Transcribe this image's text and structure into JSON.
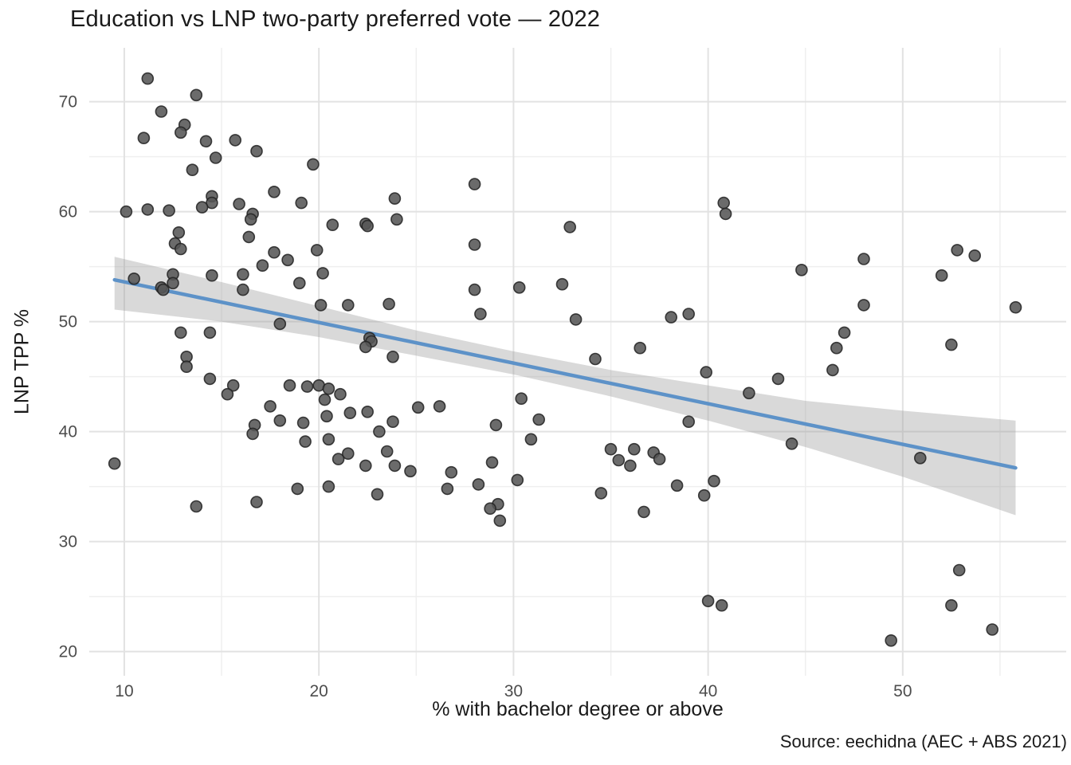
{
  "title": "Education vs LNP two-party preferred vote — 2022",
  "source": "Source: eechidna (AEC + ABS 2021)",
  "chart_data": {
    "type": "scatter",
    "title": "Education vs LNP two-party preferred vote — 2022",
    "xlabel": "% with bachelor degree or above",
    "ylabel": "LNP TPP %",
    "caption": "Source: eechidna (AEC + ABS 2021)",
    "xlim": [
      8.2,
      58.4
    ],
    "ylim": [
      17.8,
      74.9
    ],
    "x_major_ticks": [
      10,
      20,
      30,
      40,
      50
    ],
    "x_minor_ticks": [
      15,
      25,
      35,
      45,
      55
    ],
    "y_major_ticks": [
      20,
      30,
      40,
      50,
      60,
      70
    ],
    "y_minor_ticks": [
      25,
      35,
      45,
      55,
      65
    ],
    "grid": true,
    "legend": "none",
    "points": [
      [
        11.2,
        72.1
      ],
      [
        13.7,
        70.6
      ],
      [
        11.9,
        69.1
      ],
      [
        13.1,
        67.9
      ],
      [
        12.9,
        67.2
      ],
      [
        11.0,
        66.7
      ],
      [
        14.2,
        66.4
      ],
      [
        15.7,
        66.5
      ],
      [
        16.8,
        65.5
      ],
      [
        14.7,
        64.9
      ],
      [
        19.7,
        64.3
      ],
      [
        13.5,
        63.8
      ],
      [
        28.0,
        62.5
      ],
      [
        17.7,
        61.8
      ],
      [
        14.5,
        61.4
      ],
      [
        23.9,
        61.2
      ],
      [
        40.8,
        60.8
      ],
      [
        14.5,
        60.8
      ],
      [
        15.9,
        60.7
      ],
      [
        19.1,
        60.8
      ],
      [
        14.0,
        60.4
      ],
      [
        11.2,
        60.2
      ],
      [
        12.3,
        60.1
      ],
      [
        10.1,
        60.0
      ],
      [
        40.9,
        59.8
      ],
      [
        16.6,
        59.8
      ],
      [
        16.5,
        59.3
      ],
      [
        24.0,
        59.3
      ],
      [
        22.4,
        58.9
      ],
      [
        20.7,
        58.8
      ],
      [
        22.5,
        58.7
      ],
      [
        32.9,
        58.6
      ],
      [
        12.8,
        58.1
      ],
      [
        16.4,
        57.7
      ],
      [
        12.6,
        57.1
      ],
      [
        28.0,
        57.0
      ],
      [
        12.9,
        56.6
      ],
      [
        52.8,
        56.5
      ],
      [
        19.9,
        56.5
      ],
      [
        17.7,
        56.3
      ],
      [
        53.7,
        56.0
      ],
      [
        48.0,
        55.7
      ],
      [
        18.4,
        55.6
      ],
      [
        17.1,
        55.1
      ],
      [
        44.8,
        54.7
      ],
      [
        20.2,
        54.4
      ],
      [
        12.5,
        54.3
      ],
      [
        16.1,
        54.3
      ],
      [
        14.5,
        54.2
      ],
      [
        52.0,
        54.2
      ],
      [
        10.5,
        53.9
      ],
      [
        12.5,
        53.5
      ],
      [
        19.0,
        53.5
      ],
      [
        32.5,
        53.4
      ],
      [
        11.9,
        53.1
      ],
      [
        30.3,
        53.1
      ],
      [
        28.0,
        52.9
      ],
      [
        12.0,
        52.9
      ],
      [
        16.1,
        52.9
      ],
      [
        23.6,
        51.6
      ],
      [
        21.5,
        51.5
      ],
      [
        20.1,
        51.5
      ],
      [
        48.0,
        51.5
      ],
      [
        55.8,
        51.3
      ],
      [
        28.3,
        50.7
      ],
      [
        39.0,
        50.7
      ],
      [
        38.1,
        50.4
      ],
      [
        33.2,
        50.2
      ],
      [
        18.0,
        49.8
      ],
      [
        12.9,
        49.0
      ],
      [
        14.4,
        49.0
      ],
      [
        47.0,
        49.0
      ],
      [
        22.6,
        48.5
      ],
      [
        22.7,
        48.2
      ],
      [
        52.5,
        47.9
      ],
      [
        22.4,
        47.7
      ],
      [
        36.5,
        47.6
      ],
      [
        46.6,
        47.6
      ],
      [
        13.2,
        46.8
      ],
      [
        23.8,
        46.8
      ],
      [
        34.2,
        46.6
      ],
      [
        13.2,
        45.9
      ],
      [
        46.4,
        45.6
      ],
      [
        39.9,
        45.4
      ],
      [
        14.4,
        44.8
      ],
      [
        43.6,
        44.8
      ],
      [
        15.6,
        44.2
      ],
      [
        18.5,
        44.2
      ],
      [
        20.0,
        44.2
      ],
      [
        19.4,
        44.1
      ],
      [
        20.5,
        43.9
      ],
      [
        42.1,
        43.5
      ],
      [
        15.3,
        43.4
      ],
      [
        21.1,
        43.4
      ],
      [
        30.4,
        43.0
      ],
      [
        20.3,
        42.9
      ],
      [
        17.5,
        42.3
      ],
      [
        26.2,
        42.3
      ],
      [
        25.1,
        42.2
      ],
      [
        22.5,
        41.8
      ],
      [
        21.6,
        41.7
      ],
      [
        20.4,
        41.4
      ],
      [
        31.3,
        41.1
      ],
      [
        18.0,
        41.0
      ],
      [
        23.8,
        40.9
      ],
      [
        39.0,
        40.9
      ],
      [
        19.2,
        40.8
      ],
      [
        16.7,
        40.6
      ],
      [
        29.1,
        40.6
      ],
      [
        23.1,
        40.0
      ],
      [
        16.6,
        39.8
      ],
      [
        20.5,
        39.3
      ],
      [
        30.9,
        39.3
      ],
      [
        19.3,
        39.1
      ],
      [
        44.3,
        38.9
      ],
      [
        35.0,
        38.4
      ],
      [
        36.2,
        38.4
      ],
      [
        23.5,
        38.2
      ],
      [
        37.2,
        38.1
      ],
      [
        21.5,
        38.0
      ],
      [
        50.9,
        37.6
      ],
      [
        37.5,
        37.5
      ],
      [
        21.0,
        37.5
      ],
      [
        35.4,
        37.4
      ],
      [
        28.9,
        37.2
      ],
      [
        9.5,
        37.1
      ],
      [
        22.4,
        36.9
      ],
      [
        23.9,
        36.9
      ],
      [
        36.0,
        36.9
      ],
      [
        24.7,
        36.4
      ],
      [
        26.8,
        36.3
      ],
      [
        30.2,
        35.6
      ],
      [
        40.3,
        35.5
      ],
      [
        28.2,
        35.2
      ],
      [
        38.4,
        35.1
      ],
      [
        20.5,
        35.0
      ],
      [
        26.6,
        34.8
      ],
      [
        18.9,
        34.8
      ],
      [
        34.5,
        34.4
      ],
      [
        23.0,
        34.3
      ],
      [
        39.8,
        34.2
      ],
      [
        16.8,
        33.6
      ],
      [
        29.2,
        33.4
      ],
      [
        13.7,
        33.2
      ],
      [
        28.8,
        33.0
      ],
      [
        36.7,
        32.7
      ],
      [
        29.3,
        31.9
      ],
      [
        52.9,
        27.4
      ],
      [
        40.0,
        24.6
      ],
      [
        40.7,
        24.2
      ],
      [
        52.5,
        24.2
      ],
      [
        54.6,
        22.0
      ],
      [
        49.4,
        21.0
      ]
    ],
    "trend": {
      "type": "linear",
      "x1": 9.5,
      "y1": 53.8,
      "x2": 55.8,
      "y2": 36.7,
      "ci_band": [
        [
          9.5,
          51.1,
          55.9
        ],
        [
          15,
          50.0,
          53.6
        ],
        [
          20,
          48.6,
          51.4
        ],
        [
          25,
          46.9,
          49.2
        ],
        [
          30,
          45.2,
          47.3
        ],
        [
          35,
          43.2,
          45.6
        ],
        [
          40,
          41.0,
          44.2
        ],
        [
          45,
          38.6,
          42.8
        ],
        [
          50,
          35.9,
          41.9
        ],
        [
          55.8,
          32.4,
          41.0
        ]
      ]
    },
    "colors": {
      "background": "#ffffff",
      "point_fill": "#565656",
      "point_stroke": "#222222",
      "trend_line": "#5d92c8",
      "ci_fill": "#9a9a9a",
      "ci_opacity": 0.38,
      "grid_major": "#e2e2e2",
      "grid_minor": "#efefef",
      "tick_text": "#4d4d4d",
      "text": "#1a1a1a"
    }
  }
}
